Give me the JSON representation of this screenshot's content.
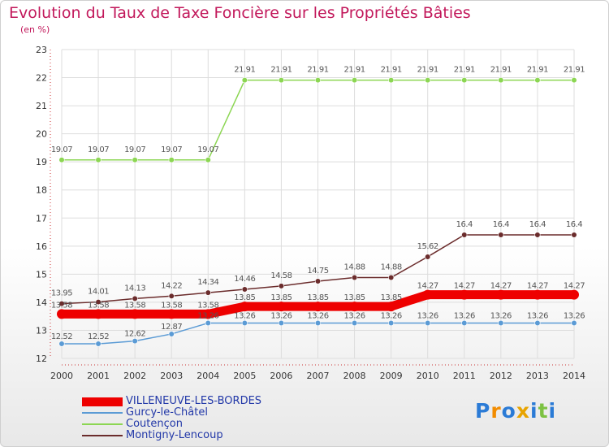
{
  "chart_data": {
    "type": "line",
    "title": "Evolution du Taux de Taxe Foncière sur les Propriétés Bâties",
    "subtitle": "(en %)",
    "x": [
      "2000",
      "2001",
      "2002",
      "2003",
      "2004",
      "2005",
      "2006",
      "2007",
      "2008",
      "2009",
      "2010",
      "2011",
      "2012",
      "2013",
      "2014"
    ],
    "ylim": [
      12,
      23
    ],
    "yticks": [
      "12",
      "13",
      "14",
      "15",
      "16",
      "17",
      "18",
      "19",
      "20",
      "21",
      "22",
      "23"
    ],
    "series": [
      {
        "name": "VILLENEUVE-LES-BORDES",
        "color": "#ee0000",
        "width": 11,
        "values": [
          13.58,
          13.58,
          13.58,
          13.58,
          13.58,
          13.85,
          13.85,
          13.85,
          13.85,
          13.85,
          14.27,
          14.27,
          14.27,
          14.27,
          14.27
        ],
        "labels": [
          "13.58",
          "13.58",
          "13.58",
          "13.58",
          "13.58",
          "13.85",
          "13.85",
          "13.85",
          "13.85",
          "13.85",
          "14.27",
          "14.27",
          "14.27",
          "14.27",
          "14.27"
        ]
      },
      {
        "name": "Gurcy-le-Châtel",
        "color": "#5b9bd5",
        "width": 1.5,
        "values": [
          12.52,
          12.52,
          12.62,
          12.87,
          13.26,
          13.26,
          13.26,
          13.26,
          13.26,
          13.26,
          13.26,
          13.26,
          13.26,
          13.26,
          13.26
        ],
        "labels": [
          "12.52",
          "12.52",
          "12.62",
          "12.87",
          "13.26",
          "13.26",
          "13.26",
          "13.26",
          "13.26",
          "13.26",
          "13.26",
          "13.26",
          "13.26",
          "13.26",
          "13.26"
        ]
      },
      {
        "name": "Coutençon",
        "color": "#8cd653",
        "width": 1.5,
        "values": [
          19.07,
          19.07,
          19.07,
          19.07,
          19.07,
          21.91,
          21.91,
          21.91,
          21.91,
          21.91,
          21.91,
          21.91,
          21.91,
          21.91,
          21.91
        ],
        "labels": [
          "19.07",
          "19.07",
          "19.07",
          "19.07",
          "19.07",
          "21.91",
          "21.91",
          "21.91",
          "21.91",
          "21.91",
          "21.91",
          "21.91",
          "21.91",
          "21.91",
          "21.91"
        ]
      },
      {
        "name": "Montigny-Lencoup",
        "color": "#6b2c2c",
        "width": 1.5,
        "values": [
          13.95,
          14.01,
          14.13,
          14.22,
          14.34,
          14.46,
          14.58,
          14.75,
          14.88,
          14.88,
          15.62,
          16.4,
          16.4,
          16.4,
          16.4
        ],
        "labels": [
          "13.95",
          "14.01",
          "14.13",
          "14.22",
          "14.34",
          "14.46",
          "14.58",
          "14.75",
          "14.88",
          "14.88",
          "15.62",
          "16.4",
          "16.4",
          "16.4",
          "16.4"
        ]
      }
    ]
  },
  "logo": {
    "letters": [
      "P",
      "r",
      "o",
      "x",
      "i",
      "t",
      "i"
    ],
    "colors": [
      "#2b7bd6",
      "#f28c00",
      "#2b7bd6",
      "#e8a400",
      "#2b7bd6",
      "#7cc242",
      "#2b7bd6"
    ]
  }
}
